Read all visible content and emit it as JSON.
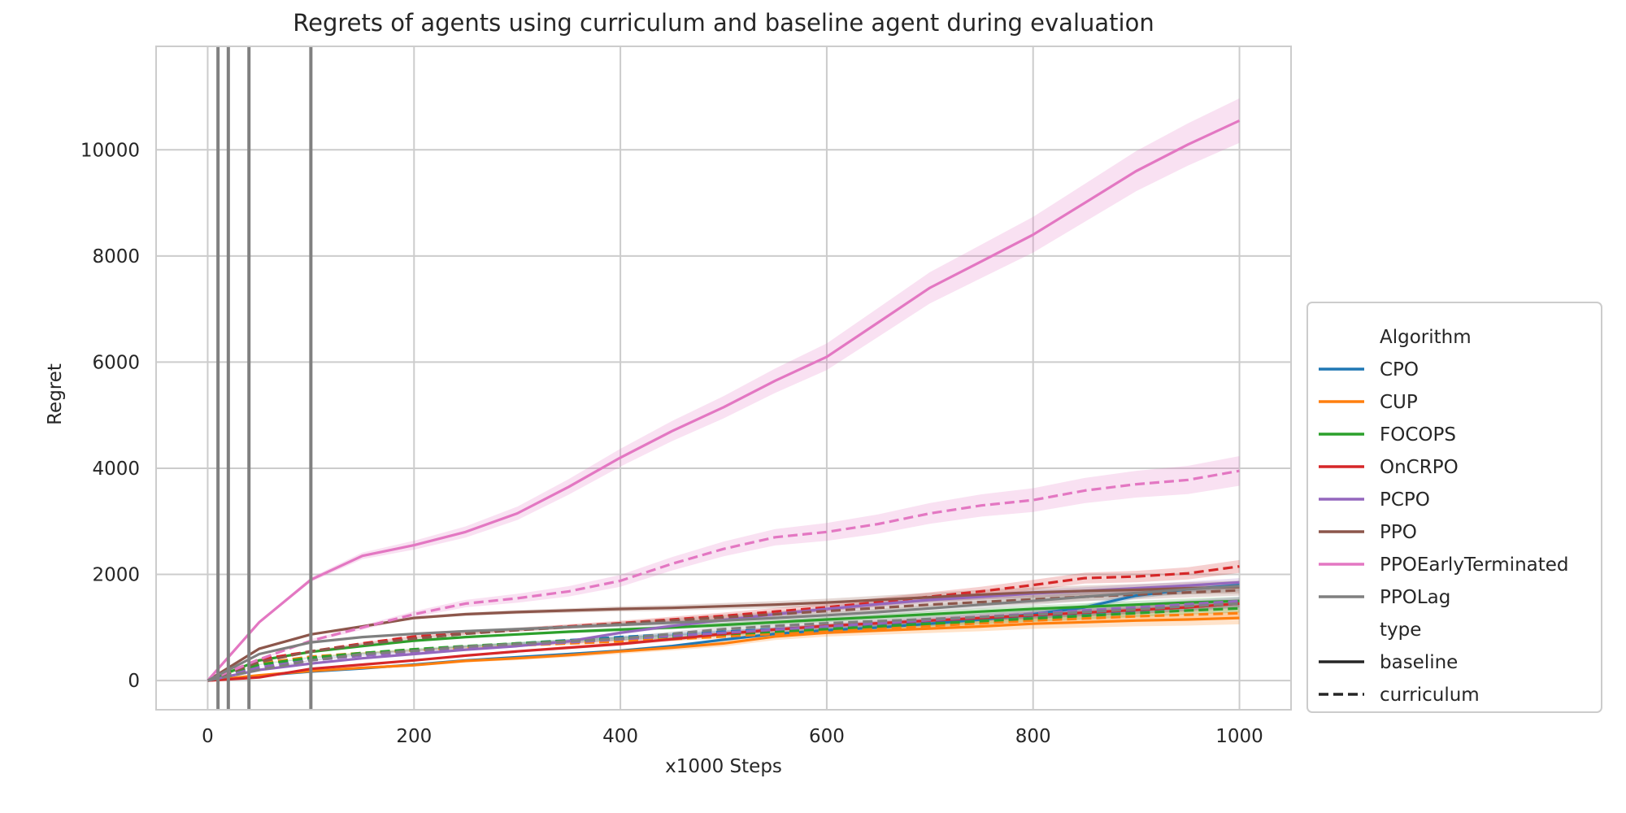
{
  "chart_data": {
    "type": "line",
    "title": "Regrets of agents using curriculum and baseline agent during evaluation",
    "xlabel": "x1000 Steps",
    "ylabel": "Regret",
    "xlim": [
      -50,
      1050
    ],
    "ylim": [
      -550,
      11950
    ],
    "xticks": [
      0,
      200,
      400,
      600,
      800,
      1000
    ],
    "yticks": [
      0,
      2000,
      4000,
      6000,
      8000,
      10000
    ],
    "grid": true,
    "legend_placement": "right, outside plot",
    "vertical_lines": [
      10,
      20,
      40,
      100
    ],
    "vertical_line_color": "#808080",
    "legend": {
      "algorithm_header": "Algorithm",
      "type_header": "type",
      "type_entries": [
        {
          "label": "baseline",
          "dash": "solid"
        },
        {
          "label": "curriculum",
          "dash": "dashed"
        }
      ]
    },
    "x": [
      0,
      50,
      100,
      150,
      200,
      250,
      300,
      350,
      400,
      450,
      500,
      550,
      600,
      650,
      700,
      750,
      800,
      850,
      900,
      950,
      1000
    ],
    "series": [
      {
        "name": "CPO",
        "type": "baseline",
        "color": "#1f77b4",
        "band": 60,
        "values": [
          0,
          90,
          170,
          230,
          300,
          380,
          440,
          500,
          560,
          650,
          770,
          880,
          950,
          1000,
          1070,
          1150,
          1250,
          1380,
          1600,
          1720,
          1800
        ]
      },
      {
        "name": "CPO",
        "type": "curriculum",
        "color": "#1f77b4",
        "band": 60,
        "values": [
          0,
          300,
          420,
          500,
          570,
          640,
          700,
          760,
          820,
          870,
          920,
          970,
          1020,
          1070,
          1120,
          1170,
          1220,
          1270,
          1320,
          1380,
          1450
        ]
      },
      {
        "name": "CUP",
        "type": "baseline",
        "color": "#ff7f0e",
        "band": 120,
        "values": [
          0,
          100,
          180,
          240,
          290,
          370,
          420,
          480,
          550,
          620,
          700,
          830,
          900,
          940,
          980,
          1020,
          1070,
          1100,
          1130,
          1150,
          1180
        ]
      },
      {
        "name": "CUP",
        "type": "curriculum",
        "color": "#ff7f0e",
        "band": 80,
        "values": [
          0,
          320,
          450,
          520,
          570,
          620,
          660,
          700,
          740,
          780,
          830,
          880,
          930,
          980,
          1030,
          1080,
          1130,
          1170,
          1210,
          1240,
          1270
        ]
      },
      {
        "name": "FOCOPS",
        "type": "baseline",
        "color": "#2ca02c",
        "band": 80,
        "values": [
          0,
          380,
          540,
          650,
          750,
          820,
          870,
          920,
          960,
          1000,
          1050,
          1100,
          1150,
          1200,
          1250,
          1300,
          1350,
          1390,
          1430,
          1470,
          1500
        ]
      },
      {
        "name": "FOCOPS",
        "type": "curriculum",
        "color": "#2ca02c",
        "band": 80,
        "values": [
          0,
          300,
          430,
          520,
          590,
          650,
          700,
          750,
          790,
          830,
          870,
          920,
          970,
          1020,
          1070,
          1120,
          1170,
          1220,
          1270,
          1320,
          1360
        ]
      },
      {
        "name": "OnCRPO",
        "type": "baseline",
        "color": "#d62728",
        "band": 80,
        "values": [
          0,
          60,
          220,
          300,
          380,
          470,
          550,
          620,
          690,
          780,
          880,
          960,
          1030,
          1080,
          1130,
          1180,
          1230,
          1280,
          1330,
          1380,
          1450
        ]
      },
      {
        "name": "OnCRPO",
        "type": "curriculum",
        "color": "#d62728",
        "band": 120,
        "values": [
          0,
          400,
          550,
          700,
          830,
          900,
          960,
          1020,
          1080,
          1150,
          1220,
          1300,
          1380,
          1480,
          1580,
          1680,
          1800,
          1930,
          1960,
          2020,
          2150
        ]
      },
      {
        "name": "PCPO",
        "type": "baseline",
        "color": "#9467bd",
        "band": 80,
        "values": [
          0,
          200,
          320,
          420,
          500,
          580,
          650,
          740,
          900,
          1030,
          1140,
          1250,
          1350,
          1440,
          1520,
          1580,
          1640,
          1690,
          1740,
          1790,
          1850
        ]
      },
      {
        "name": "PCPO",
        "type": "curriculum",
        "color": "#9467bd",
        "band": 80,
        "values": [
          0,
          250,
          380,
          470,
          540,
          600,
          660,
          720,
          780,
          840,
          900,
          960,
          1020,
          1080,
          1140,
          1200,
          1260,
          1320,
          1380,
          1440,
          1500
        ]
      },
      {
        "name": "PPO",
        "type": "baseline",
        "color": "#8c564b",
        "band": 120,
        "values": [
          0,
          600,
          870,
          1020,
          1180,
          1250,
          1290,
          1320,
          1350,
          1370,
          1400,
          1430,
          1470,
          1520,
          1570,
          1620,
          1660,
          1690,
          1710,
          1740,
          1760
        ]
      },
      {
        "name": "PPO",
        "type": "curriculum",
        "color": "#8c564b",
        "band": 100,
        "values": [
          0,
          350,
          550,
          680,
          790,
          880,
          950,
          1010,
          1070,
          1130,
          1190,
          1250,
          1310,
          1370,
          1430,
          1480,
          1530,
          1580,
          1620,
          1660,
          1700
        ]
      },
      {
        "name": "PPOEarlyTerminated",
        "type": "baseline",
        "color": "#e377c2",
        "band": 420,
        "values": [
          0,
          1100,
          1900,
          2350,
          2550,
          2800,
          3150,
          3650,
          4200,
          4700,
          5150,
          5650,
          6100,
          6750,
          7400,
          7900,
          8400,
          9000,
          9600,
          10100,
          10550
        ]
      },
      {
        "name": "PPOEarlyTerminated",
        "type": "curriculum",
        "color": "#e377c2",
        "band": 280,
        "values": [
          0,
          400,
          750,
          1000,
          1250,
          1450,
          1550,
          1680,
          1880,
          2200,
          2480,
          2700,
          2800,
          2950,
          3150,
          3300,
          3400,
          3580,
          3700,
          3780,
          3950
        ]
      },
      {
        "name": "PPOLag",
        "type": "baseline",
        "color": "#7f7f7f",
        "band": 100,
        "values": [
          0,
          500,
          720,
          820,
          880,
          930,
          970,
          1010,
          1050,
          1090,
          1130,
          1180,
          1230,
          1290,
          1360,
          1430,
          1500,
          1580,
          1650,
          1720,
          1780
        ]
      },
      {
        "name": "PPOLag",
        "type": "curriculum",
        "color": "#7f7f7f",
        "band": 100,
        "values": [
          0,
          200,
          380,
          500,
          560,
          640,
          690,
          740,
          790,
          880,
          970,
          1030,
          1080,
          1120,
          1160,
          1200,
          1240,
          1290,
          1340,
          1400,
          1450
        ]
      }
    ]
  }
}
